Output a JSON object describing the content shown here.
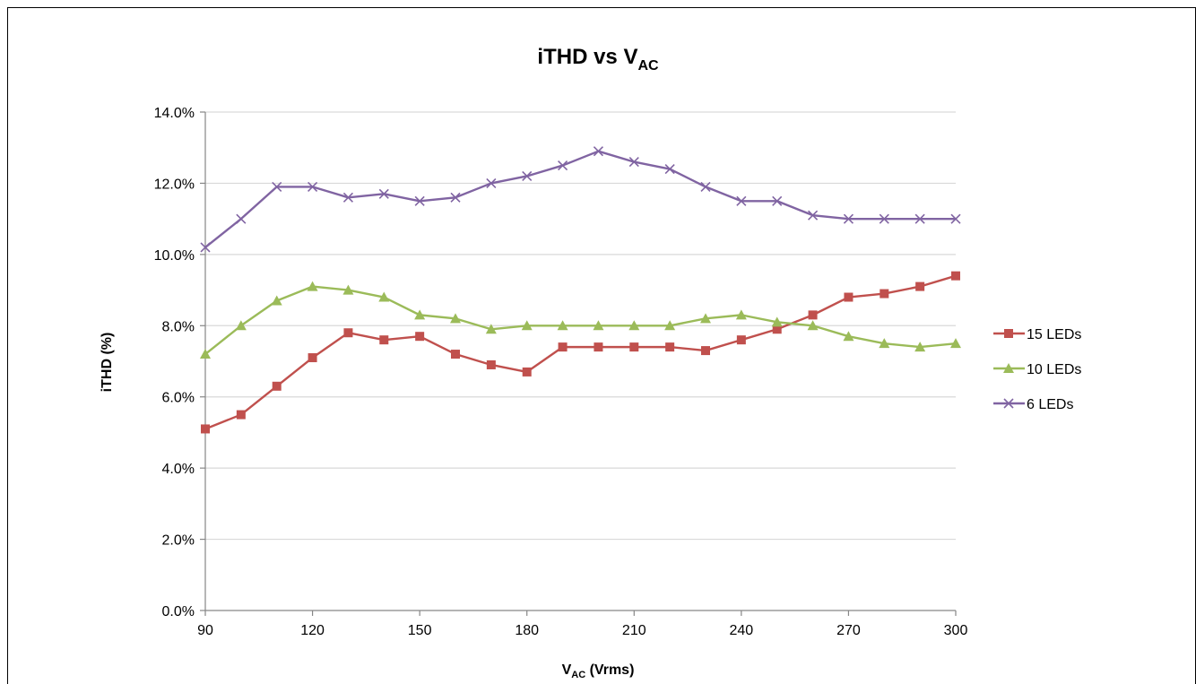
{
  "chart_data": {
    "type": "line",
    "title": "iTHD vs V",
    "title_sub": "AC",
    "xlabel": "V",
    "xlabel_sub": "AC",
    "xlabel_unit": " (Vrms)",
    "ylabel": "iTHD (%)",
    "xlim": [
      90,
      300
    ],
    "ylim": [
      0,
      14
    ],
    "x_ticks": [
      90,
      120,
      150,
      180,
      210,
      240,
      270,
      300
    ],
    "y_ticks": [
      0,
      2,
      4,
      6,
      8,
      10,
      12,
      14
    ],
    "y_tick_labels": [
      "0.0%",
      "2.0%",
      "4.0%",
      "6.0%",
      "8.0%",
      "10.0%",
      "12.0%",
      "14.0%"
    ],
    "grid": "horizontal",
    "legend_position": "right",
    "x": [
      90,
      100,
      110,
      120,
      130,
      140,
      150,
      160,
      170,
      180,
      190,
      200,
      210,
      220,
      230,
      240,
      250,
      260,
      270,
      280,
      290,
      300
    ],
    "series": [
      {
        "name": "15 LEDs",
        "color": "#c0504d",
        "marker": "square",
        "values": [
          5.1,
          5.5,
          6.3,
          7.1,
          7.8,
          7.6,
          7.7,
          7.2,
          6.9,
          6.7,
          7.4,
          7.4,
          7.4,
          7.4,
          7.3,
          7.6,
          7.9,
          8.3,
          8.8,
          8.9,
          9.1,
          9.4
        ]
      },
      {
        "name": "10 LEDs",
        "color": "#9bbb59",
        "marker": "triangle",
        "values": [
          7.2,
          8.0,
          8.7,
          9.1,
          9.0,
          8.8,
          8.3,
          8.2,
          7.9,
          8.0,
          8.0,
          8.0,
          8.0,
          8.0,
          8.2,
          8.3,
          8.1,
          8.0,
          7.7,
          7.5,
          7.4,
          7.5
        ]
      },
      {
        "name": "6 LEDs",
        "color": "#8064a2",
        "marker": "x",
        "values": [
          10.2,
          11.0,
          11.9,
          11.9,
          11.6,
          11.7,
          11.5,
          11.6,
          12.0,
          12.2,
          12.5,
          12.9,
          12.6,
          12.4,
          11.9,
          11.5,
          11.5,
          11.1,
          11.0,
          11.0,
          11.0,
          11.0
        ]
      }
    ]
  }
}
